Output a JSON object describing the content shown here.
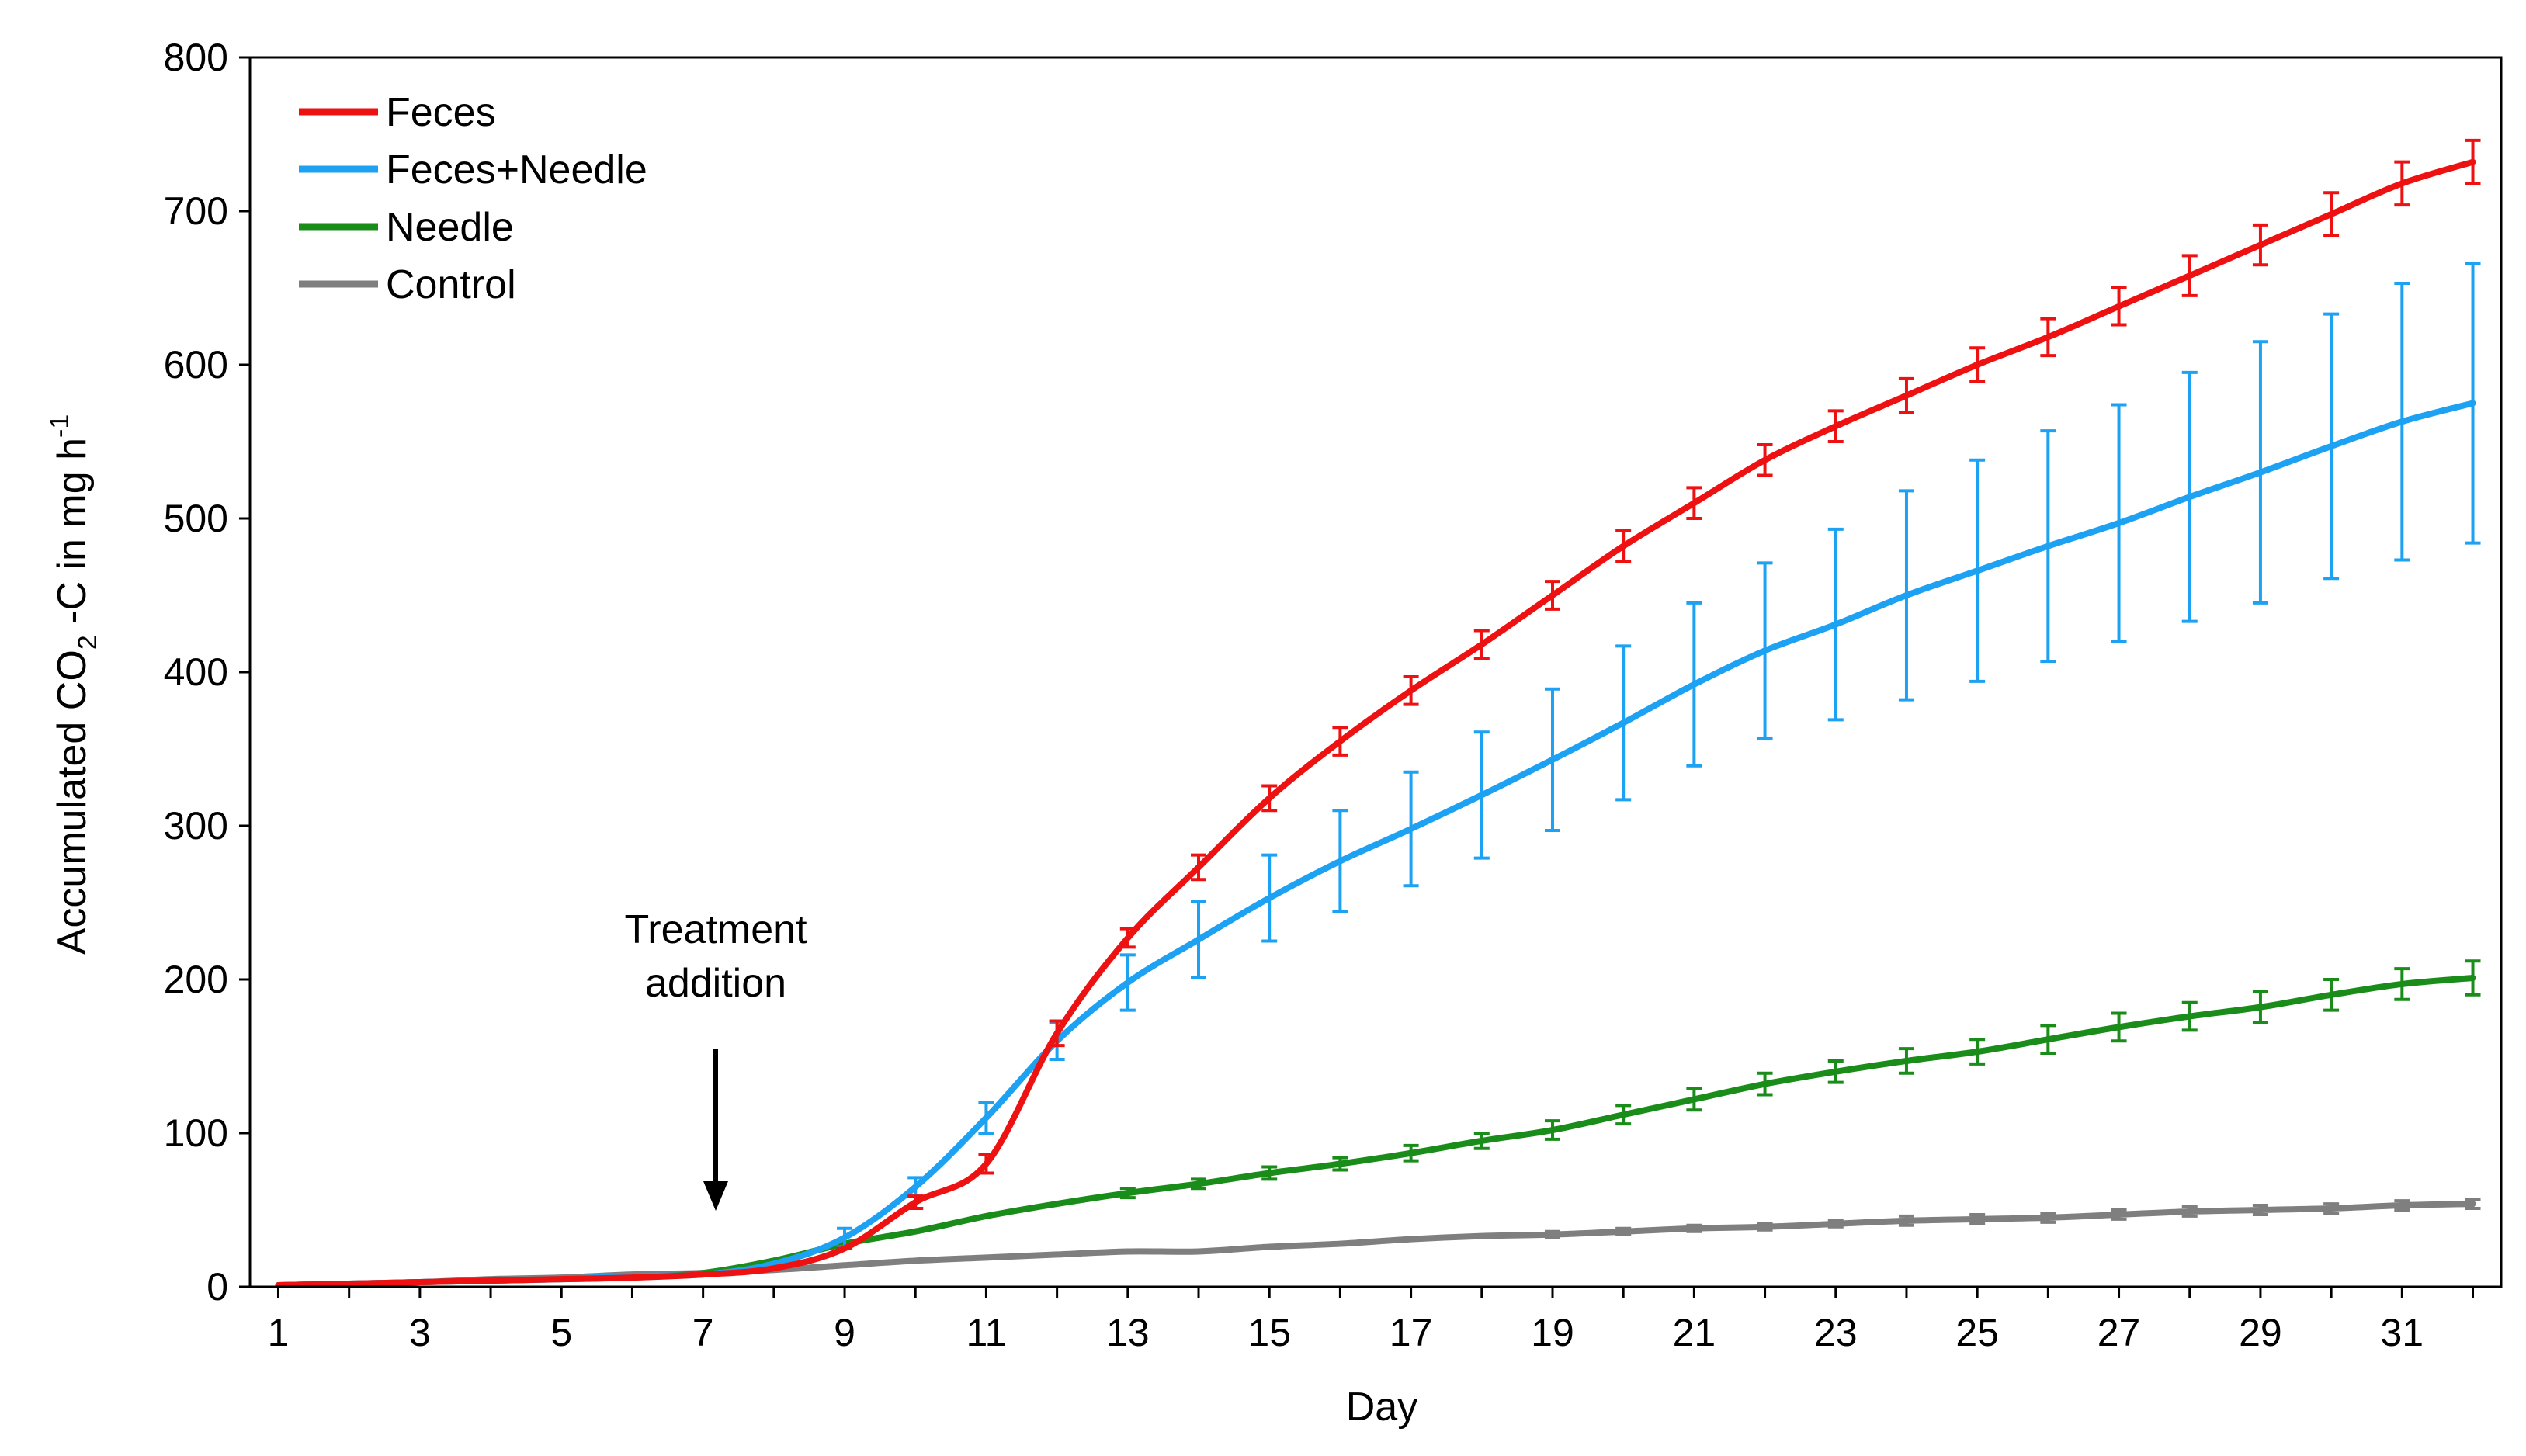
{
  "chart_data": {
    "type": "line",
    "title": "",
    "xlabel": "Day",
    "ylabel": {
      "prefix": "Accumulated CO",
      "subscript": "2",
      "middle": " -C in mg h",
      "superscript": "-1"
    },
    "xlim": [
      0.6,
      32.4
    ],
    "ylim": [
      0,
      800
    ],
    "x_ticks": [
      "1",
      "3",
      "5",
      "7",
      "9",
      "11",
      "13",
      "15",
      "17",
      "19",
      "21",
      "23",
      "25",
      "27",
      "29",
      "31"
    ],
    "y_ticks": [
      "0",
      "100",
      "200",
      "300",
      "400",
      "500",
      "600",
      "700",
      "800"
    ],
    "legend_position": "top-left",
    "annotation": {
      "lines": [
        "Treatment",
        "addition"
      ],
      "arrow_day": 7
    },
    "x": [
      1,
      2,
      3,
      4,
      5,
      6,
      7,
      8,
      9,
      10,
      11,
      12,
      13,
      14,
      15,
      16,
      17,
      18,
      19,
      20,
      21,
      22,
      23,
      24,
      25,
      26,
      27,
      28,
      29,
      30,
      31,
      32
    ],
    "series": [
      {
        "name": "Feces",
        "color": "#ee1111",
        "values": [
          1,
          2,
          3,
          4,
          5,
          6,
          8,
          12,
          25,
          55,
          80,
          165,
          227,
          273,
          318,
          355,
          388,
          418,
          450,
          482,
          510,
          538,
          560,
          580,
          600,
          618,
          638,
          658,
          678,
          698,
          718,
          732
        ],
        "errors": [
          0,
          0,
          0,
          0,
          0,
          0,
          0,
          0,
          0,
          4,
          6,
          8,
          6,
          8,
          8,
          9,
          9,
          9,
          9,
          10,
          10,
          10,
          10,
          11,
          11,
          12,
          12,
          13,
          13,
          14,
          14,
          14
        ],
        "err_start": 9
      },
      {
        "name": "Feces+Needle",
        "color": "#1da1f2",
        "values": [
          1,
          2,
          3,
          4,
          5,
          7,
          8,
          15,
          32,
          65,
          110,
          160,
          198,
          226,
          253,
          277,
          298,
          320,
          343,
          367,
          392,
          414,
          431,
          450,
          466,
          482,
          497,
          514,
          530,
          547,
          563,
          575
        ],
        "errors": [
          0,
          0,
          0,
          0,
          0,
          0,
          0,
          0,
          6,
          6,
          10,
          12,
          18,
          25,
          28,
          33,
          37,
          41,
          46,
          50,
          53,
          57,
          62,
          68,
          72,
          75,
          77,
          81,
          85,
          86,
          90,
          91
        ],
        "err_start": 7
      },
      {
        "name": "Needle",
        "color": "#1a8c1a",
        "values": [
          1,
          2,
          3,
          4,
          5,
          6,
          9,
          17,
          28,
          36,
          46,
          54,
          61,
          67,
          74,
          80,
          87,
          95,
          102,
          112,
          122,
          132,
          140,
          147,
          153,
          161,
          169,
          176,
          182,
          190,
          197,
          201
        ],
        "errors": [
          0,
          0,
          0,
          0,
          0,
          0,
          0,
          3,
          3,
          3,
          3,
          3,
          3,
          3,
          4,
          4,
          5,
          5,
          6,
          6,
          7,
          7,
          7,
          8,
          8,
          9,
          9,
          9,
          10,
          10,
          10,
          11
        ],
        "err_start": 13
      },
      {
        "name": "Control",
        "color": "#7f7f7f",
        "values": [
          1,
          2,
          3,
          5,
          6,
          8,
          9,
          11,
          14,
          17,
          19,
          21,
          23,
          23,
          26,
          28,
          31,
          33,
          34,
          36,
          38,
          39,
          41,
          43,
          44,
          45,
          47,
          49,
          50,
          51,
          53,
          54
        ],
        "errors": [
          0,
          0,
          0,
          0,
          0,
          0,
          0,
          0,
          0,
          0,
          0,
          0,
          0,
          0,
          0,
          0,
          0,
          0,
          2,
          2,
          2,
          2,
          2,
          3,
          3,
          3,
          3,
          3,
          3,
          3,
          3,
          3
        ],
        "err_start": 18
      }
    ]
  }
}
